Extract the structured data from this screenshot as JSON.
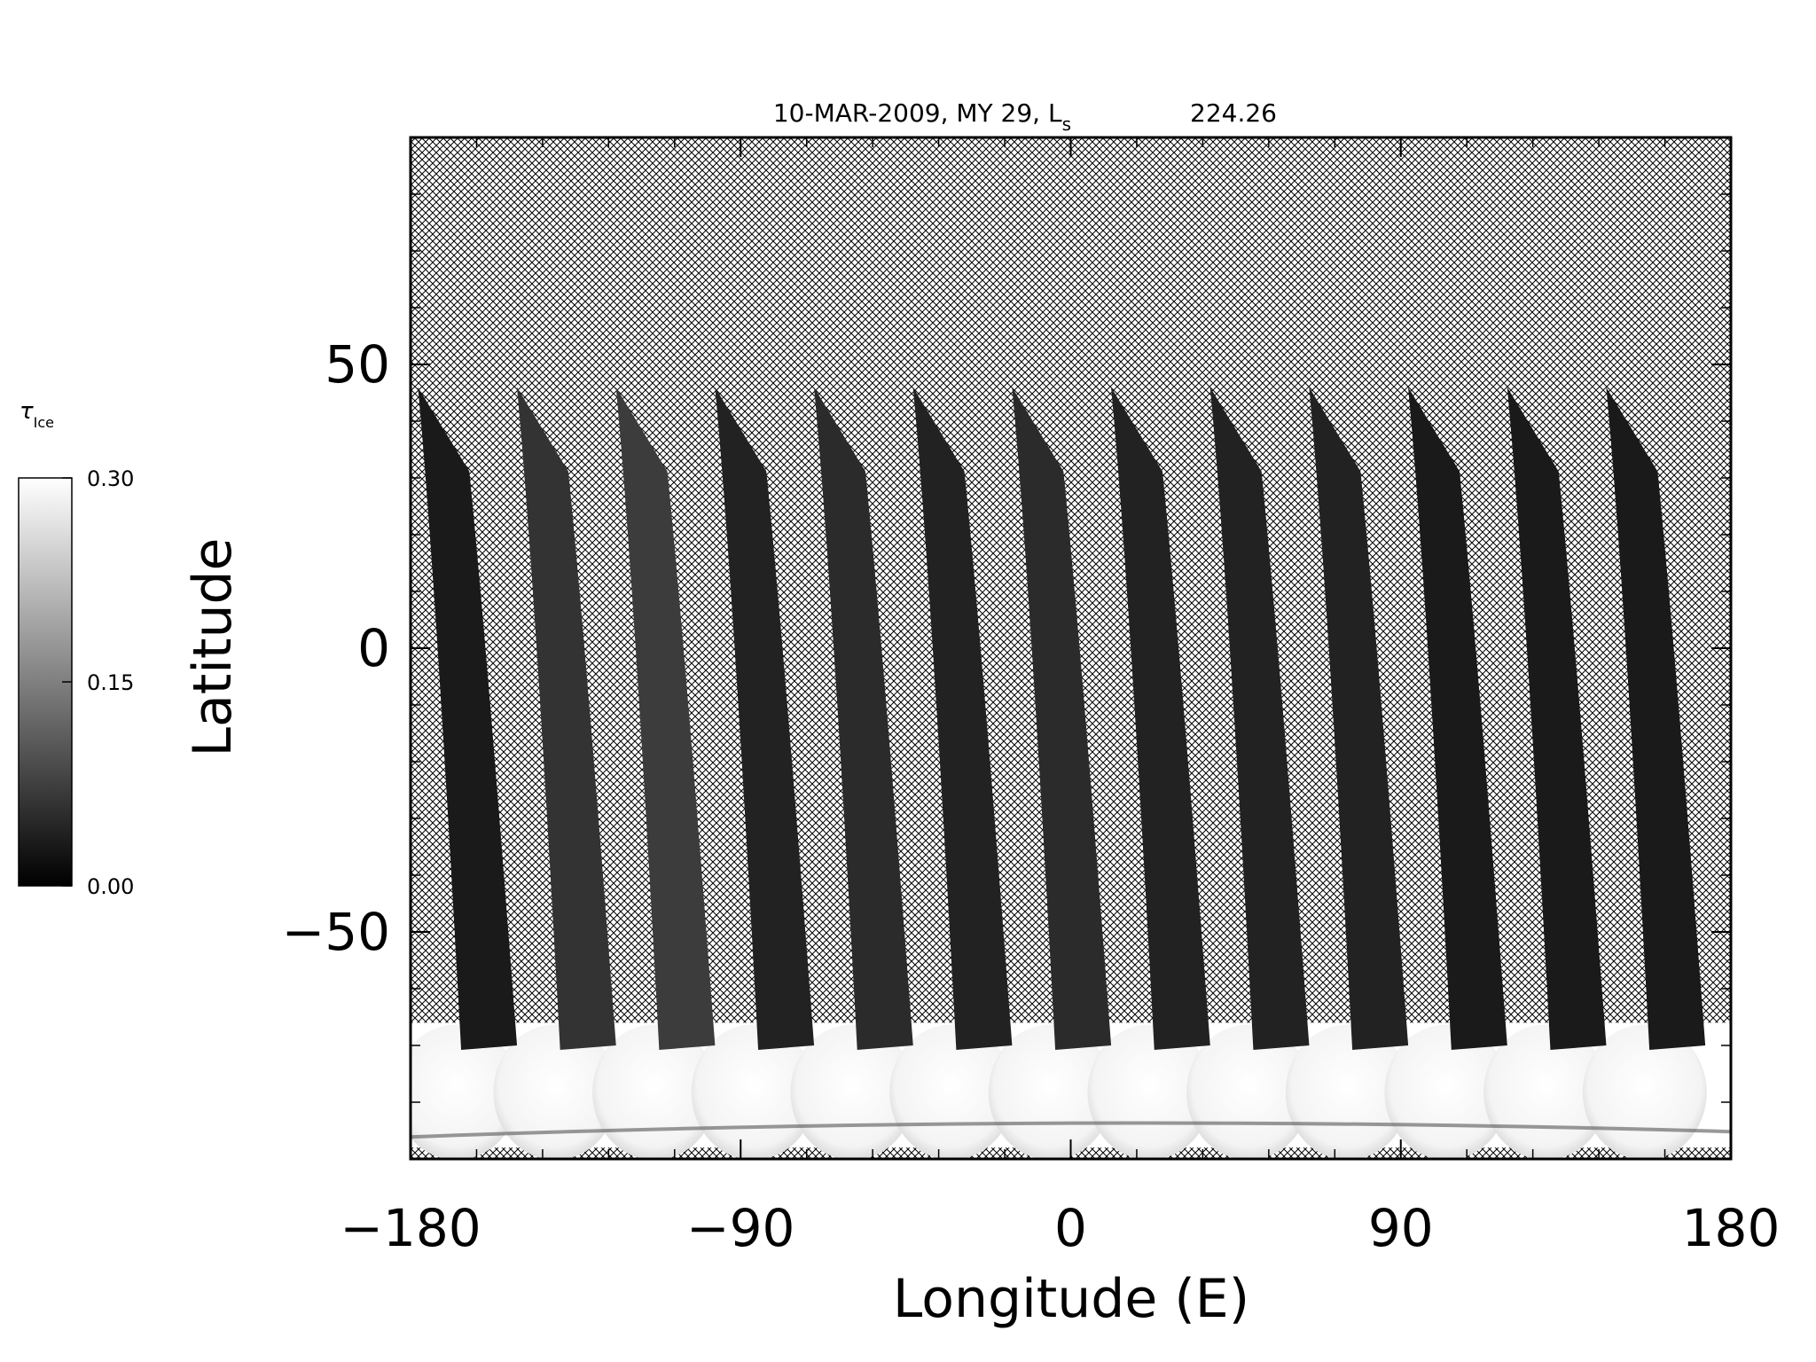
{
  "chart_data": {
    "type": "heatmap",
    "title": "10-MAR-2009, MY 29,  L",
    "title_subscript": "s",
    "title_value": "224.26",
    "xlabel": "Longitude (E)",
    "ylabel": "Latitude",
    "xlim": [
      -180,
      180
    ],
    "ylim": [
      -90,
      90
    ],
    "x_ticks": [
      "-180",
      "-90",
      "0",
      "90",
      "180"
    ],
    "y_ticks": [
      "-50",
      "0",
      "50"
    ],
    "x_tick_values": [
      -180,
      -90,
      0,
      90,
      180
    ],
    "y_tick_values": [
      -50,
      0,
      50
    ],
    "colorbar": {
      "label": "τ",
      "label_subscript": "Ice",
      "range": [
        0.0,
        0.3
      ],
      "ticks": [
        "0.30",
        "0.15",
        "0.00"
      ],
      "tick_values": [
        0.3,
        0.15,
        0.0
      ]
    },
    "no_data_pattern": "crosshatch",
    "swaths": [
      {
        "lon_north": -178,
        "lon_south": -165,
        "lat_top": 46,
        "lat_bottom": -70,
        "mean_value": 0.03
      },
      {
        "lon_north": -151,
        "lon_south": -138,
        "lat_top": 46,
        "lat_bottom": -70,
        "mean_value": 0.06
      },
      {
        "lon_north": -124,
        "lon_south": -111,
        "lat_top": 46,
        "lat_bottom": -70,
        "mean_value": 0.07
      },
      {
        "lon_north": -97,
        "lon_south": -84,
        "lat_top": 46,
        "lat_bottom": -70,
        "mean_value": 0.04
      },
      {
        "lon_north": -70,
        "lon_south": -57,
        "lat_top": 46,
        "lat_bottom": -70,
        "mean_value": 0.05
      },
      {
        "lon_north": -43,
        "lon_south": -30,
        "lat_top": 46,
        "lat_bottom": -70,
        "mean_value": 0.04
      },
      {
        "lon_north": -16,
        "lon_south": -3,
        "lat_top": 46,
        "lat_bottom": -70,
        "mean_value": 0.05
      },
      {
        "lon_north": 11,
        "lon_south": 24,
        "lat_top": 46,
        "lat_bottom": -70,
        "mean_value": 0.04
      },
      {
        "lon_north": 38,
        "lon_south": 51,
        "lat_top": 46,
        "lat_bottom": -70,
        "mean_value": 0.04
      },
      {
        "lon_north": 65,
        "lon_south": 78,
        "lat_top": 46,
        "lat_bottom": -70,
        "mean_value": 0.04
      },
      {
        "lon_north": 92,
        "lon_south": 105,
        "lat_top": 46,
        "lat_bottom": -70,
        "mean_value": 0.03
      },
      {
        "lon_north": 119,
        "lon_south": 132,
        "lat_top": 46,
        "lat_bottom": -70,
        "mean_value": 0.03
      },
      {
        "lon_north": 146,
        "lon_south": 159,
        "lat_top": 46,
        "lat_bottom": -70,
        "mean_value": 0.03
      }
    ],
    "south_polar_band": {
      "lat_top": -66,
      "lat_bottom": -88,
      "value": 0.3
    }
  }
}
